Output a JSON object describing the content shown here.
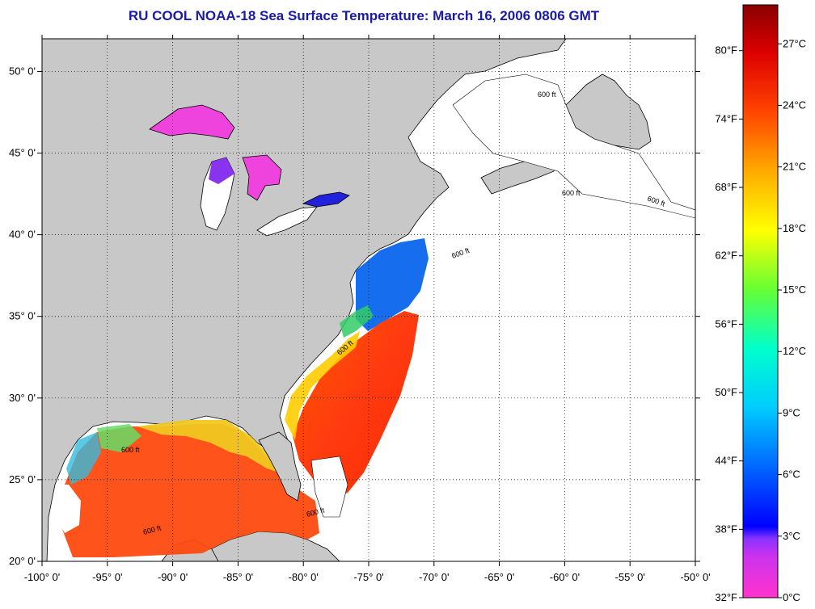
{
  "title": "RU COOL  NOAA-18  Sea Surface Temperature:  March 16, 2006 0806 GMT",
  "colors": {
    "title": "#1a1aa6",
    "land": "#c8c8c8",
    "grid": "#000000",
    "no_data": "#ffffff"
  },
  "map": {
    "projection": "plate-carree",
    "lon_range": [
      -100,
      -50
    ],
    "lat_range": [
      20,
      52
    ],
    "x_ticks": [
      "-100° 0'",
      "-95° 0'",
      "-90° 0'",
      "-85° 0'",
      "-80° 0'",
      "-75° 0'",
      "-70° 0'",
      "-65° 0'",
      "-60° 0'",
      "-55° 0'",
      "-50° 0'"
    ],
    "y_ticks": [
      "20° 0'",
      "25° 0'",
      "30° 0'",
      "35° 0'",
      "40° 0'",
      "45° 0'",
      "50° 0'"
    ],
    "isobath_label": "600 ft",
    "grid": "dotted"
  },
  "colorbar": {
    "min_c": 0,
    "max_c": 28.9,
    "celsius_ticks": [
      "0°C",
      "3°C",
      "6°C",
      "9°C",
      "12°C",
      "15°C",
      "18°C",
      "21°C",
      "24°C",
      "27°C"
    ],
    "fahrenheit_ticks": [
      "32°F",
      "38°F",
      "44°F",
      "50°F",
      "56°F",
      "62°F",
      "68°F",
      "74°F",
      "80°F"
    ],
    "colors": [
      "#ff33cc",
      "#9933ff",
      "#0000ff",
      "#0066ff",
      "#00ccff",
      "#00ffcc",
      "#66ff33",
      "#ffff00",
      "#ff9900",
      "#ff3300",
      "#dd0000",
      "#880000"
    ]
  }
}
